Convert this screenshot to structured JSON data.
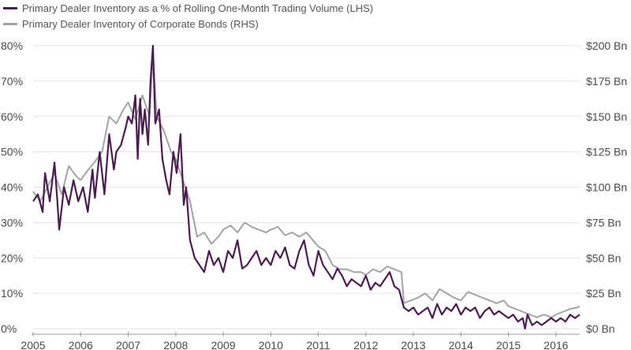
{
  "chart_data": {
    "type": "line",
    "xlim": [
      2005,
      2016.5
    ],
    "x_ticks": [
      "2005",
      "2006",
      "2007",
      "2008",
      "2009",
      "2010",
      "2011",
      "2012",
      "2013",
      "2014",
      "2015",
      "2016"
    ],
    "y_left_ticks": [
      "0%",
      "10%",
      "20%",
      "30%",
      "40%",
      "50%",
      "60%",
      "70%",
      "80%"
    ],
    "y_left_range": [
      0,
      80
    ],
    "y_right_ticks": [
      "$0 Bn",
      "$25 Bn",
      "$50 Bn",
      "$75 Bn",
      "$100 Bn",
      "$125 Bn",
      "$150 Bn",
      "$175 Bn",
      "$200 Bn"
    ],
    "y_right_range": [
      0,
      200
    ],
    "legend_position": "top-left",
    "series": [
      {
        "name": "Primary Dealer Inventory as a % of Rolling One-Month Trading Volume (LHS)",
        "axis": "left",
        "color": "#4b1c4e",
        "x": [
          2005.0,
          2005.1,
          2005.2,
          2005.25,
          2005.35,
          2005.45,
          2005.5,
          2005.55,
          2005.65,
          2005.75,
          2005.85,
          2005.95,
          2006.05,
          2006.15,
          2006.25,
          2006.3,
          2006.4,
          2006.5,
          2006.6,
          2006.7,
          2006.75,
          2006.85,
          2006.95,
          2007.0,
          2007.08,
          2007.15,
          2007.2,
          2007.25,
          2007.3,
          2007.35,
          2007.42,
          2007.47,
          2007.52,
          2007.57,
          2007.65,
          2007.72,
          2007.8,
          2007.87,
          2007.95,
          2008.02,
          2008.1,
          2008.17,
          2008.22,
          2008.3,
          2008.4,
          2008.5,
          2008.6,
          2008.7,
          2008.8,
          2008.9,
          2009.0,
          2009.1,
          2009.2,
          2009.3,
          2009.4,
          2009.5,
          2009.6,
          2009.7,
          2009.8,
          2009.9,
          2010.0,
          2010.1,
          2010.2,
          2010.3,
          2010.4,
          2010.5,
          2010.6,
          2010.7,
          2010.8,
          2010.9,
          2011.0,
          2011.1,
          2011.2,
          2011.3,
          2011.4,
          2011.5,
          2011.6,
          2011.7,
          2011.8,
          2011.9,
          2012.0,
          2012.1,
          2012.2,
          2012.3,
          2012.4,
          2012.5,
          2012.6,
          2012.7,
          2012.8,
          2012.9,
          2013.0,
          2013.1,
          2013.2,
          2013.3,
          2013.4,
          2013.5,
          2013.6,
          2013.7,
          2013.8,
          2013.9,
          2014.0,
          2014.1,
          2014.2,
          2014.3,
          2014.4,
          2014.5,
          2014.6,
          2014.7,
          2014.8,
          2014.9,
          2015.0,
          2015.1,
          2015.2,
          2015.3,
          2015.35,
          2015.4,
          2015.5,
          2015.6,
          2015.7,
          2015.8,
          2015.9,
          2016.0,
          2016.1,
          2016.2,
          2016.3,
          2016.4,
          2016.5
        ],
        "y": [
          36,
          38,
          33,
          44,
          36,
          47,
          38,
          28,
          40,
          35,
          42,
          36,
          40,
          33,
          45,
          37,
          50,
          38,
          55,
          45,
          50,
          52,
          57,
          60,
          58,
          66,
          48,
          65,
          55,
          62,
          52,
          70,
          80,
          58,
          62,
          48,
          42,
          38,
          50,
          44,
          55,
          35,
          40,
          25,
          20,
          18,
          16,
          22,
          18,
          20,
          16,
          22,
          20,
          25,
          17,
          18,
          20,
          22,
          18,
          20,
          18,
          22,
          20,
          23,
          18,
          17,
          22,
          25,
          18,
          15,
          22,
          18,
          16,
          14,
          17,
          15,
          12,
          14,
          13,
          12,
          15,
          11,
          13,
          12,
          14,
          16,
          12,
          11,
          6,
          5,
          6,
          4,
          5,
          6,
          3,
          7,
          4,
          6,
          5,
          7,
          4,
          6,
          5,
          6,
          3,
          5,
          6,
          4,
          5,
          4,
          3,
          4,
          2,
          3,
          0,
          4,
          1,
          2,
          1,
          2,
          3,
          2,
          3,
          2,
          4,
          3,
          4
        ]
      },
      {
        "name": "Primary Dealer Inventory of Corporate Bonds (RHS)",
        "axis": "right",
        "color": "#a3a3a3",
        "x": [
          2005.0,
          2005.15,
          2005.3,
          2005.45,
          2005.6,
          2005.75,
          2005.9,
          2006.0,
          2006.15,
          2006.3,
          2006.45,
          2006.6,
          2006.75,
          2006.9,
          2007.0,
          2007.15,
          2007.3,
          2007.45,
          2007.52,
          2007.6,
          2007.75,
          2007.9,
          2008.0,
          2008.1,
          2008.2,
          2008.3,
          2008.45,
          2008.6,
          2008.75,
          2008.9,
          2009.0,
          2009.15,
          2009.3,
          2009.45,
          2009.6,
          2009.75,
          2009.9,
          2010.0,
          2010.15,
          2010.3,
          2010.45,
          2010.6,
          2010.75,
          2010.9,
          2011.0,
          2011.15,
          2011.3,
          2011.45,
          2011.6,
          2011.75,
          2011.9,
          2012.0,
          2012.15,
          2012.3,
          2012.45,
          2012.6,
          2012.75,
          2012.8,
          2012.95,
          2013.1,
          2013.25,
          2013.4,
          2013.55,
          2013.7,
          2013.85,
          2014.0,
          2014.15,
          2014.3,
          2014.45,
          2014.6,
          2014.75,
          2014.9,
          2015.0,
          2015.15,
          2015.3,
          2015.45,
          2015.6,
          2015.75,
          2015.9,
          2016.0,
          2016.15,
          2016.3,
          2016.45,
          2016.5
        ],
        "y": [
          97,
          90,
          100,
          110,
          95,
          115,
          108,
          105,
          112,
          118,
          125,
          150,
          145,
          155,
          160,
          148,
          165,
          150,
          195,
          150,
          140,
          125,
          120,
          110,
          100,
          90,
          65,
          68,
          60,
          65,
          70,
          73,
          68,
          75,
          72,
          70,
          68,
          70,
          72,
          66,
          68,
          65,
          68,
          62,
          58,
          55,
          45,
          42,
          42,
          40,
          40,
          38,
          42,
          40,
          44,
          42,
          40,
          18,
          20,
          22,
          25,
          20,
          28,
          25,
          22,
          20,
          26,
          24,
          22,
          20,
          18,
          20,
          16,
          14,
          12,
          10,
          8,
          10,
          8,
          10,
          12,
          14,
          15,
          16
        ]
      }
    ]
  }
}
